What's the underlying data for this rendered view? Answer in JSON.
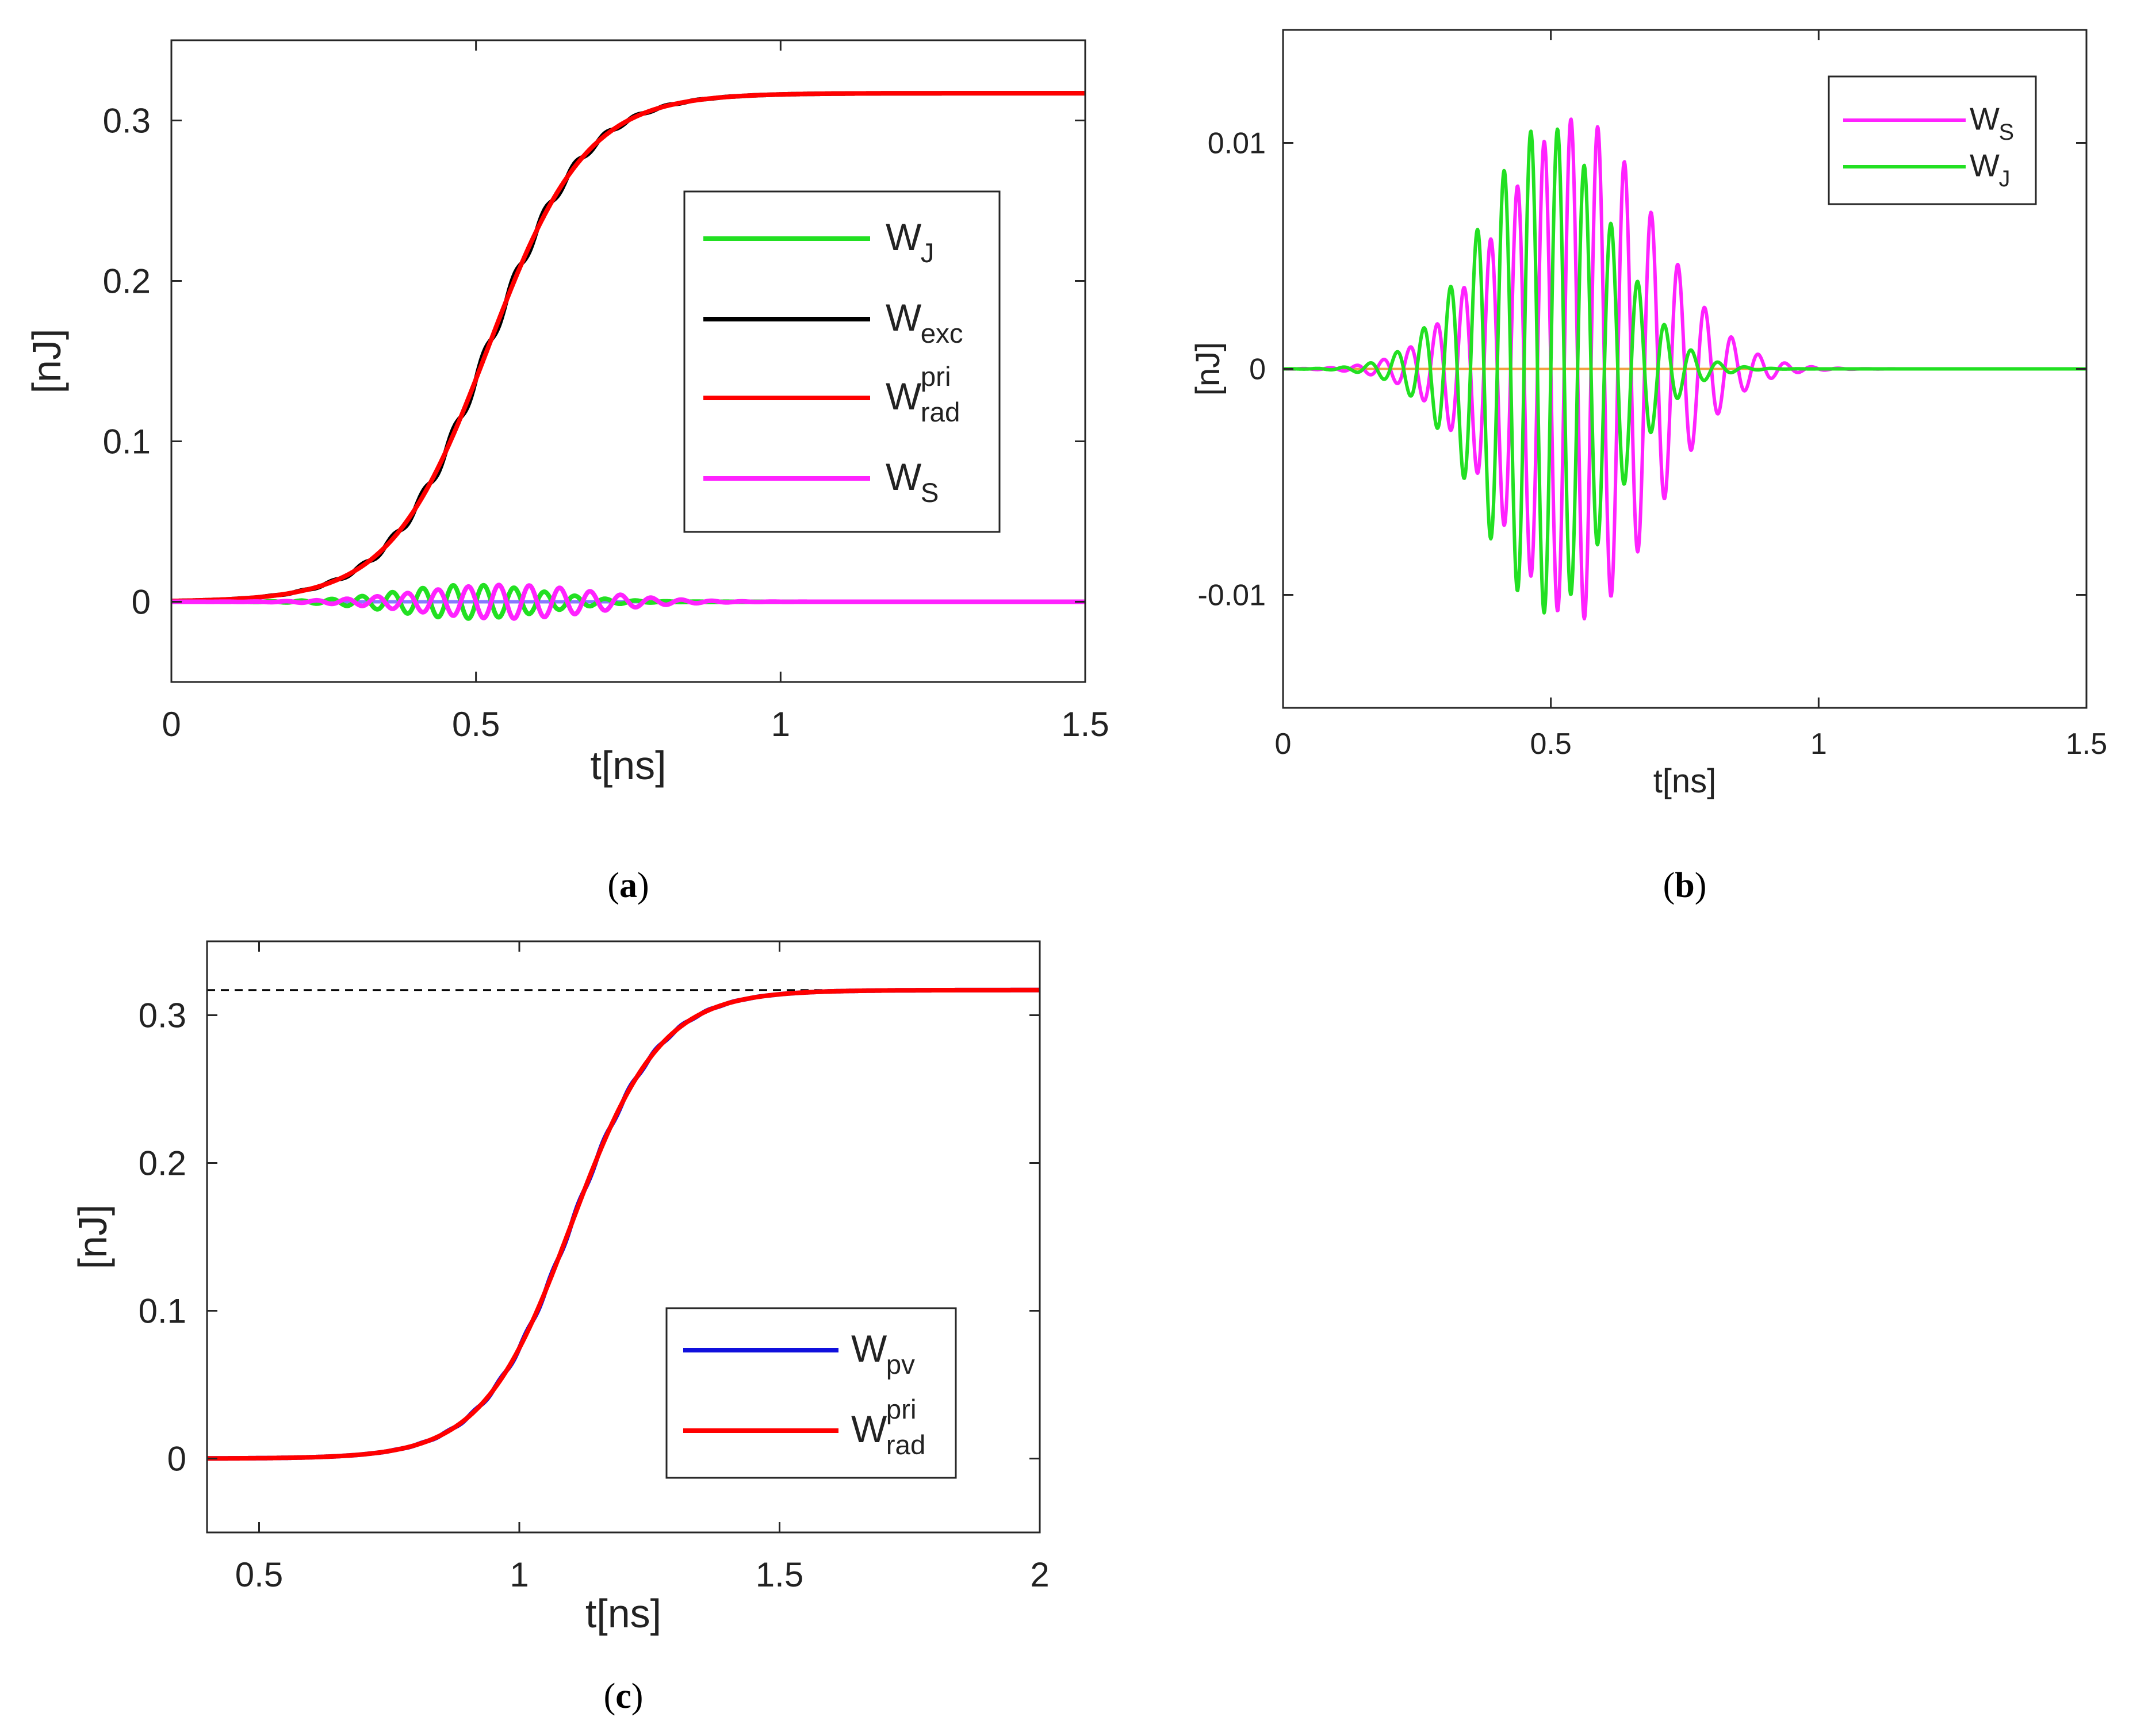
{
  "chart_data": [
    {
      "panel": "a",
      "caption": "a",
      "type": "line",
      "xlabel": "t[ns]",
      "ylabel": "[nJ]",
      "xlim": [
        0,
        1.5
      ],
      "ylim": [
        -0.05,
        0.35
      ],
      "xticks": [
        0,
        0.5,
        1,
        1.5
      ],
      "xtick_labels": [
        "0",
        "0.5",
        "1",
        "1.5"
      ],
      "yticks": [
        0,
        0.1,
        0.2,
        0.3
      ],
      "ytick_labels": [
        "0",
        "0.1",
        "0.2",
        "0.3"
      ],
      "grid": false,
      "legend_position": "right",
      "series": [
        {
          "name": "W_J",
          "label_base": "W",
          "label_sub": "J",
          "label_sup": "",
          "color": "#22e022",
          "model": {
            "kind": "osc",
            "amplitude": 0.0105,
            "center": 0.49,
            "width": 0.17,
            "freq": 20,
            "phase": 0.0
          }
        },
        {
          "name": "W_exc",
          "label_base": "W",
          "label_sub": "exc",
          "label_sup": "",
          "color": "#000000",
          "model": {
            "kind": "rise",
            "final": 0.317,
            "center": 0.52,
            "width": 0.16,
            "ripple": 0.004,
            "freq": 20
          }
        },
        {
          "name": "W_rad^pri",
          "label_base": "W",
          "label_sub": "rad",
          "label_sup": "pri",
          "color": "#ff0000",
          "model": {
            "kind": "rise",
            "final": 0.317,
            "center": 0.52,
            "width": 0.16,
            "ripple": 0.0,
            "freq": 20
          }
        },
        {
          "name": "W_S",
          "label_base": "W",
          "label_sub": "S",
          "label_sup": "",
          "color": "#ff22ff",
          "model": {
            "kind": "osc",
            "amplitude": 0.0105,
            "center": 0.55,
            "width": 0.2,
            "freq": 20,
            "phase": 3.1416
          }
        }
      ],
      "baseline": {
        "y": 0,
        "color": "#8877ff"
      }
    },
    {
      "panel": "b",
      "caption": "b",
      "type": "line",
      "xlabel": "t[ns]",
      "ylabel": "[nJ]",
      "xlim": [
        0,
        1.5
      ],
      "ylim": [
        -0.015,
        0.015
      ],
      "xticks": [
        0,
        0.5,
        1,
        1.5
      ],
      "xtick_labels": [
        "0",
        "0.5",
        "1",
        "1.5"
      ],
      "yticks": [
        -0.01,
        0,
        0.01
      ],
      "ytick_labels": [
        "-0.01",
        "0",
        "0.01"
      ],
      "grid": false,
      "legend_position": "top-right",
      "series": [
        {
          "name": "W_S",
          "label_base": "W",
          "label_sub": "S",
          "label_sup": "",
          "color": "#ff22ff",
          "model": {
            "kind": "osc",
            "amplitude": 0.0111,
            "center": 0.55,
            "width": 0.2,
            "freq": 20,
            "phase": 3.1416
          }
        },
        {
          "name": "W_J",
          "label_base": "W",
          "label_sub": "J",
          "label_sup": "",
          "color": "#22e022",
          "model": {
            "kind": "osc",
            "amplitude": 0.0108,
            "center": 0.49,
            "width": 0.17,
            "freq": 20,
            "phase": 0.0
          }
        }
      ],
      "baseline": {
        "y": 0,
        "color": "#f0a040"
      }
    },
    {
      "panel": "c",
      "caption": "c",
      "type": "line",
      "xlabel": "t[ns]",
      "ylabel": "[nJ]",
      "xlim": [
        0.4,
        2
      ],
      "ylim": [
        -0.05,
        0.35
      ],
      "xticks": [
        0.5,
        1,
        1.5,
        2
      ],
      "xtick_labels": [
        "0.5",
        "1",
        "1.5",
        "2"
      ],
      "yticks": [
        0,
        0.1,
        0.2,
        0.3
      ],
      "ytick_labels": [
        "0",
        "0.1",
        "0.2",
        "0.3"
      ],
      "grid": false,
      "legend_position": "bottom-right",
      "reference_line": {
        "y": 0.317,
        "style": "dashed",
        "color": "#000000"
      },
      "series": [
        {
          "name": "W_pv",
          "label_base": "W",
          "label_sub": "pv",
          "label_sup": "",
          "color": "#1010dd",
          "model": {
            "kind": "rise",
            "final": 0.317,
            "center": 1.1,
            "width": 0.17,
            "ripple": 0.0015,
            "freq": 20
          }
        },
        {
          "name": "W_rad^pri",
          "label_base": "W",
          "label_sub": "rad",
          "label_sup": "pri",
          "color": "#ff0000",
          "model": {
            "kind": "rise",
            "final": 0.317,
            "center": 1.1,
            "width": 0.17,
            "ripple": 0.0,
            "freq": 20
          }
        }
      ]
    }
  ]
}
